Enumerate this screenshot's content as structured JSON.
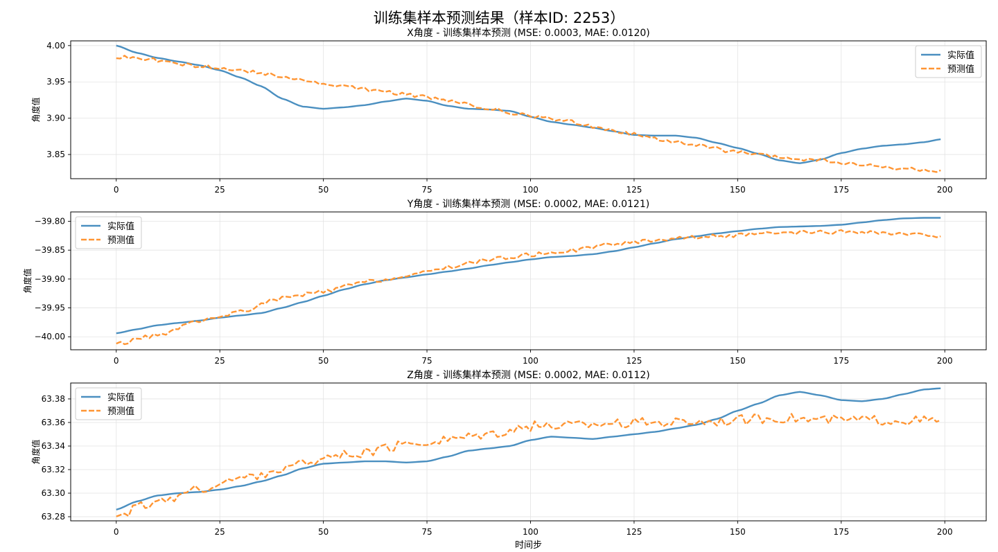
{
  "figure": {
    "suptitle": "训练集样本预测结果（样本ID: 2253）",
    "xlabel": "时间步",
    "colors": {
      "actual": "#4a8fc0",
      "predicted": "#ff9533"
    },
    "legend": {
      "actual": "实际值",
      "predicted": "预测值"
    }
  },
  "chart_data": [
    {
      "type": "line",
      "title": "X角度 - 训练集样本预测 (MSE: 0.0003, MAE: 0.0120)",
      "xlabel": "",
      "ylabel": "角度值",
      "xlim": [
        -11,
        210
      ],
      "ylim": [
        3.8167,
        4.0065
      ],
      "xticks": [
        0,
        25,
        50,
        75,
        100,
        125,
        150,
        175,
        200
      ],
      "yticks": [
        3.85,
        3.9,
        3.95,
        4.0
      ],
      "ytick_labels": [
        "3.85",
        "3.90",
        "3.95",
        "4.00"
      ],
      "grid": true,
      "legend_position": "upper right",
      "series": [
        {
          "name": "实际值",
          "style": "solid",
          "knots": [
            [
              0,
              4.0
            ],
            [
              5,
              3.99
            ],
            [
              10,
              3.983
            ],
            [
              15,
              3.978
            ],
            [
              20,
              3.973
            ],
            [
              25,
              3.966
            ],
            [
              30,
              3.956
            ],
            [
              35,
              3.944
            ],
            [
              40,
              3.927
            ],
            [
              45,
              3.916
            ],
            [
              50,
              3.913
            ],
            [
              55,
              3.915
            ],
            [
              60,
              3.918
            ],
            [
              65,
              3.923
            ],
            [
              70,
              3.927
            ],
            [
              75,
              3.924
            ],
            [
              80,
              3.917
            ],
            [
              85,
              3.913
            ],
            [
              90,
              3.912
            ],
            [
              95,
              3.91
            ],
            [
              100,
              3.902
            ],
            [
              105,
              3.895
            ],
            [
              110,
              3.891
            ],
            [
              115,
              3.887
            ],
            [
              120,
              3.882
            ],
            [
              125,
              3.877
            ],
            [
              130,
              3.876
            ],
            [
              135,
              3.876
            ],
            [
              140,
              3.873
            ],
            [
              145,
              3.866
            ],
            [
              150,
              3.859
            ],
            [
              155,
              3.851
            ],
            [
              160,
              3.842
            ],
            [
              165,
              3.838
            ],
            [
              170,
              3.843
            ],
            [
              175,
              3.852
            ],
            [
              180,
              3.858
            ],
            [
              185,
              3.862
            ],
            [
              190,
              3.864
            ],
            [
              195,
              3.867
            ],
            [
              199,
              3.871
            ]
          ]
        },
        {
          "name": "预测值",
          "style": "dashed",
          "knots": [
            [
              0,
              3.985
            ],
            [
              10,
              3.98
            ],
            [
              20,
              3.972
            ],
            [
              30,
              3.966
            ],
            [
              40,
              3.958
            ],
            [
              50,
              3.947
            ],
            [
              60,
              3.94
            ],
            [
              70,
              3.933
            ],
            [
              80,
              3.924
            ],
            [
              90,
              3.913
            ],
            [
              100,
              3.903
            ],
            [
              110,
              3.895
            ],
            [
              120,
              3.883
            ],
            [
              130,
              3.872
            ],
            [
              140,
              3.863
            ],
            [
              150,
              3.853
            ],
            [
              160,
              3.846
            ],
            [
              170,
              3.842
            ],
            [
              180,
              3.835
            ],
            [
              190,
              3.83
            ],
            [
              199,
              3.827
            ]
          ],
          "noise": 0.0026
        }
      ]
    },
    {
      "type": "line",
      "title": "Y角度 - 训练集样本预测 (MSE: 0.0002, MAE: 0.0121)",
      "xlabel": "",
      "ylabel": "角度值",
      "xlim": [
        -11,
        210
      ],
      "ylim": [
        -40.0225,
        -39.7838
      ],
      "xticks": [
        0,
        25,
        50,
        75,
        100,
        125,
        150,
        175,
        200
      ],
      "yticks": [
        -40.0,
        -39.95,
        -39.9,
        -39.85,
        -39.8
      ],
      "ytick_labels": [
        "−40.00",
        "−39.95",
        "−39.90",
        "−39.85",
        "−39.80"
      ],
      "grid": true,
      "legend_position": "upper left",
      "series": [
        {
          "name": "实际值",
          "style": "solid",
          "knots": [
            [
              0,
              -39.994
            ],
            [
              5,
              -39.987
            ],
            [
              10,
              -39.98
            ],
            [
              15,
              -39.976
            ],
            [
              20,
              -39.972
            ],
            [
              25,
              -39.967
            ],
            [
              30,
              -39.963
            ],
            [
              35,
              -39.959
            ],
            [
              40,
              -39.95
            ],
            [
              45,
              -39.94
            ],
            [
              50,
              -39.929
            ],
            [
              55,
              -39.918
            ],
            [
              60,
              -39.909
            ],
            [
              65,
              -39.902
            ],
            [
              70,
              -39.897
            ],
            [
              75,
              -39.892
            ],
            [
              80,
              -39.887
            ],
            [
              85,
              -39.882
            ],
            [
              90,
              -39.876
            ],
            [
              95,
              -39.871
            ],
            [
              100,
              -39.866
            ],
            [
              105,
              -39.862
            ],
            [
              110,
              -39.86
            ],
            [
              115,
              -39.857
            ],
            [
              120,
              -39.852
            ],
            [
              125,
              -39.845
            ],
            [
              130,
              -39.838
            ],
            [
              135,
              -39.831
            ],
            [
              140,
              -39.826
            ],
            [
              145,
              -39.821
            ],
            [
              150,
              -39.817
            ],
            [
              155,
              -39.813
            ],
            [
              160,
              -39.81
            ],
            [
              165,
              -39.809
            ],
            [
              170,
              -39.808
            ],
            [
              175,
              -39.806
            ],
            [
              180,
              -39.802
            ],
            [
              185,
              -39.798
            ],
            [
              190,
              -39.795
            ],
            [
              195,
              -39.794
            ],
            [
              199,
              -39.794
            ]
          ]
        },
        {
          "name": "预测值",
          "style": "dashed",
          "knots": [
            [
              0,
              -40.012
            ],
            [
              10,
              -39.997
            ],
            [
              20,
              -39.974
            ],
            [
              30,
              -39.956
            ],
            [
              40,
              -39.933
            ],
            [
              50,
              -39.922
            ],
            [
              60,
              -39.905
            ],
            [
              70,
              -39.896
            ],
            [
              80,
              -39.879
            ],
            [
              90,
              -39.866
            ],
            [
              100,
              -39.858
            ],
            [
              110,
              -39.85
            ],
            [
              120,
              -39.84
            ],
            [
              130,
              -39.832
            ],
            [
              140,
              -39.827
            ],
            [
              150,
              -39.824
            ],
            [
              160,
              -39.821
            ],
            [
              170,
              -39.819
            ],
            [
              180,
              -39.818
            ],
            [
              190,
              -39.823
            ],
            [
              199,
              -39.825
            ]
          ],
          "noise": 0.0035
        }
      ]
    },
    {
      "type": "line",
      "title": "Z角度 - 训练集样本预测 (MSE: 0.0002, MAE: 0.0112)",
      "xlabel": "时间步",
      "ylabel": "角度值",
      "xlim": [
        -11,
        210
      ],
      "ylim": [
        63.2765,
        63.3935
      ],
      "xticks": [
        0,
        25,
        50,
        75,
        100,
        125,
        150,
        175,
        200
      ],
      "yticks": [
        63.28,
        63.3,
        63.32,
        63.34,
        63.36,
        63.38
      ],
      "ytick_labels": [
        "63.28",
        "63.30",
        "63.32",
        "63.34",
        "63.36",
        "63.38"
      ],
      "grid": true,
      "legend_position": "upper left",
      "series": [
        {
          "name": "实际值",
          "style": "solid",
          "knots": [
            [
              0,
              63.286
            ],
            [
              5,
              63.293
            ],
            [
              10,
              63.298
            ],
            [
              15,
              63.3
            ],
            [
              20,
              63.301
            ],
            [
              25,
              63.303
            ],
            [
              30,
              63.306
            ],
            [
              35,
              63.31
            ],
            [
              40,
              63.315
            ],
            [
              45,
              63.321
            ],
            [
              50,
              63.325
            ],
            [
              55,
              63.326
            ],
            [
              60,
              63.327
            ],
            [
              65,
              63.327
            ],
            [
              70,
              63.326
            ],
            [
              75,
              63.327
            ],
            [
              80,
              63.331
            ],
            [
              85,
              63.336
            ],
            [
              90,
              63.338
            ],
            [
              95,
              63.34
            ],
            [
              100,
              63.345
            ],
            [
              105,
              63.348
            ],
            [
              110,
              63.347
            ],
            [
              115,
              63.346
            ],
            [
              120,
              63.348
            ],
            [
              125,
              63.35
            ],
            [
              130,
              63.352
            ],
            [
              135,
              63.355
            ],
            [
              140,
              63.358
            ],
            [
              145,
              63.363
            ],
            [
              150,
              63.37
            ],
            [
              155,
              63.376
            ],
            [
              160,
              63.383
            ],
            [
              165,
              63.386
            ],
            [
              170,
              63.383
            ],
            [
              175,
              63.379
            ],
            [
              180,
              63.378
            ],
            [
              185,
              63.38
            ],
            [
              190,
              63.384
            ],
            [
              195,
              63.388
            ],
            [
              199,
              63.389
            ]
          ]
        },
        {
          "name": "预测值",
          "style": "dashed",
          "knots": [
            [
              0,
              63.282
            ],
            [
              10,
              63.292
            ],
            [
              20,
              63.303
            ],
            [
              30,
              63.312
            ],
            [
              40,
              63.32
            ],
            [
              50,
              63.33
            ],
            [
              60,
              63.334
            ],
            [
              70,
              63.341
            ],
            [
              80,
              63.346
            ],
            [
              90,
              63.351
            ],
            [
              100,
              63.357
            ],
            [
              110,
              63.358
            ],
            [
              120,
              63.36
            ],
            [
              130,
              63.36
            ],
            [
              140,
              63.361
            ],
            [
              150,
              63.362
            ],
            [
              160,
              63.364
            ],
            [
              170,
              63.362
            ],
            [
              180,
              63.362
            ],
            [
              190,
              63.362
            ],
            [
              199,
              63.361
            ]
          ],
          "noise": 0.0042
        }
      ]
    }
  ]
}
